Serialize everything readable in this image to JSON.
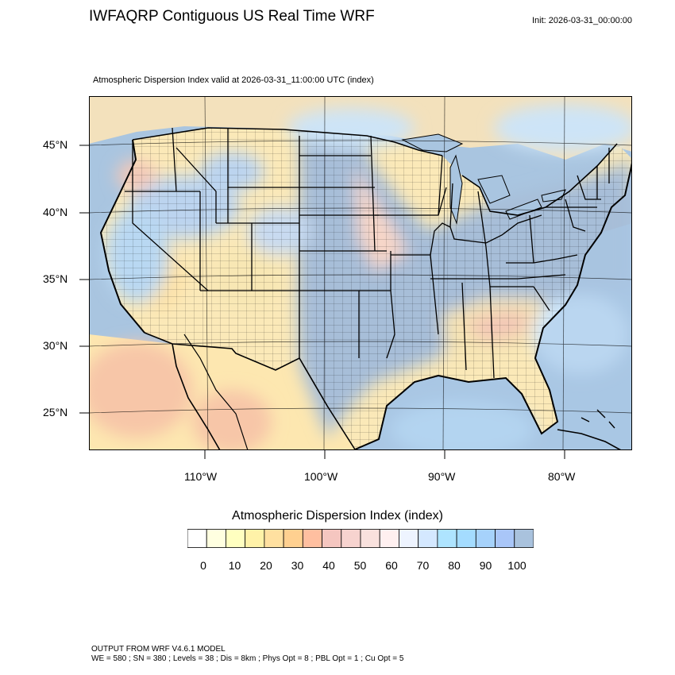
{
  "header": {
    "title": "IWFAQRP Contiguous US Real Time WRF",
    "init": "Init: 2026-03-31_00:00:00",
    "subtitle": "Atmospheric Dispersion Index valid at 2026-03-31_11:00:00 UTC   (index)"
  },
  "map": {
    "lat_labels": [
      "45°N",
      "40°N",
      "35°N",
      "30°N",
      "25°N"
    ],
    "lon_labels": [
      "110°W",
      "100°W",
      "90°W",
      "80°W"
    ],
    "ocean_color": "#a9c5e0",
    "land_base_color": "#fbe9b8"
  },
  "colorbar": {
    "title": "Atmospheric Dispersion Index  (index)",
    "tick_labels": [
      "0",
      "10",
      "20",
      "30",
      "40",
      "50",
      "60",
      "70",
      "80",
      "90",
      "100"
    ],
    "colors": [
      "#ffffff",
      "#ffffe0",
      "#ffffc0",
      "#fff2a8",
      "#ffe0a0",
      "#ffd090",
      "#ffbfa0",
      "#f5c6c0",
      "#f7d3cf",
      "#f9e1dd",
      "#fff0f0",
      "#eef4ff",
      "#d4e8ff",
      "#aee4ff",
      "#a4dcff",
      "#a6d2fb",
      "#a9c6f8",
      "#a9c2dd"
    ]
  },
  "footer": {
    "line1": "OUTPUT FROM WRF V4.6.1 MODEL",
    "line2": "WE = 580 ; SN = 380 ; Levels = 38 ; Dis = 8km ; Phys Opt = 8 ; PBL Opt = 1 ; Cu Opt = 5"
  }
}
